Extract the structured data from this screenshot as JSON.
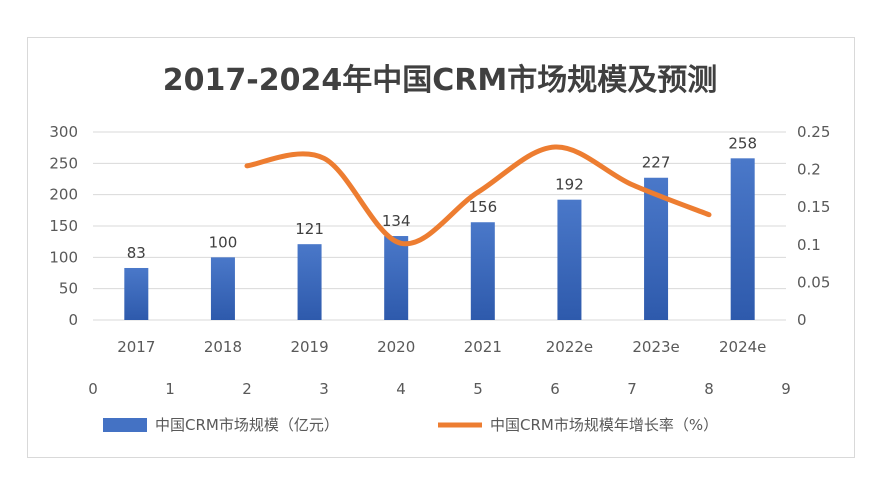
{
  "chart_data": {
    "type": "bar",
    "title": "2017-2024年中国CRM市场规模及预测",
    "categories": [
      "2017",
      "2018",
      "2019",
      "2020",
      "2021",
      "2022e",
      "2023e",
      "2024e"
    ],
    "series": [
      {
        "name": "中国CRM市场规模（亿元）",
        "type": "bar",
        "axis": "left",
        "color": "#4472c4",
        "values": [
          83,
          100,
          121,
          134,
          156,
          192,
          227,
          258
        ]
      },
      {
        "name": "中国CRM市场规模年增长率（%）",
        "type": "line",
        "axis": "right",
        "color": "#ed7d31",
        "x": [
          2,
          3,
          4,
          5,
          6,
          7,
          8
        ],
        "values": [
          0.205,
          0.215,
          0.102,
          0.17,
          0.23,
          0.18,
          0.14
        ]
      }
    ],
    "y_left": {
      "ticks": [
        "0",
        "50",
        "100",
        "150",
        "200",
        "250",
        "300"
      ],
      "lim": [
        0,
        300
      ]
    },
    "y_right": {
      "ticks": [
        "0",
        "0.05",
        "0.1",
        "0.15",
        "0.2",
        "0.25"
      ],
      "lim": [
        0,
        0.25
      ]
    },
    "x_secondary": {
      "ticks": [
        "0",
        "1",
        "2",
        "3",
        "4",
        "5",
        "6",
        "7",
        "8",
        "9"
      ],
      "lim": [
        0,
        9
      ]
    },
    "grid": true,
    "legend": "bottom"
  }
}
